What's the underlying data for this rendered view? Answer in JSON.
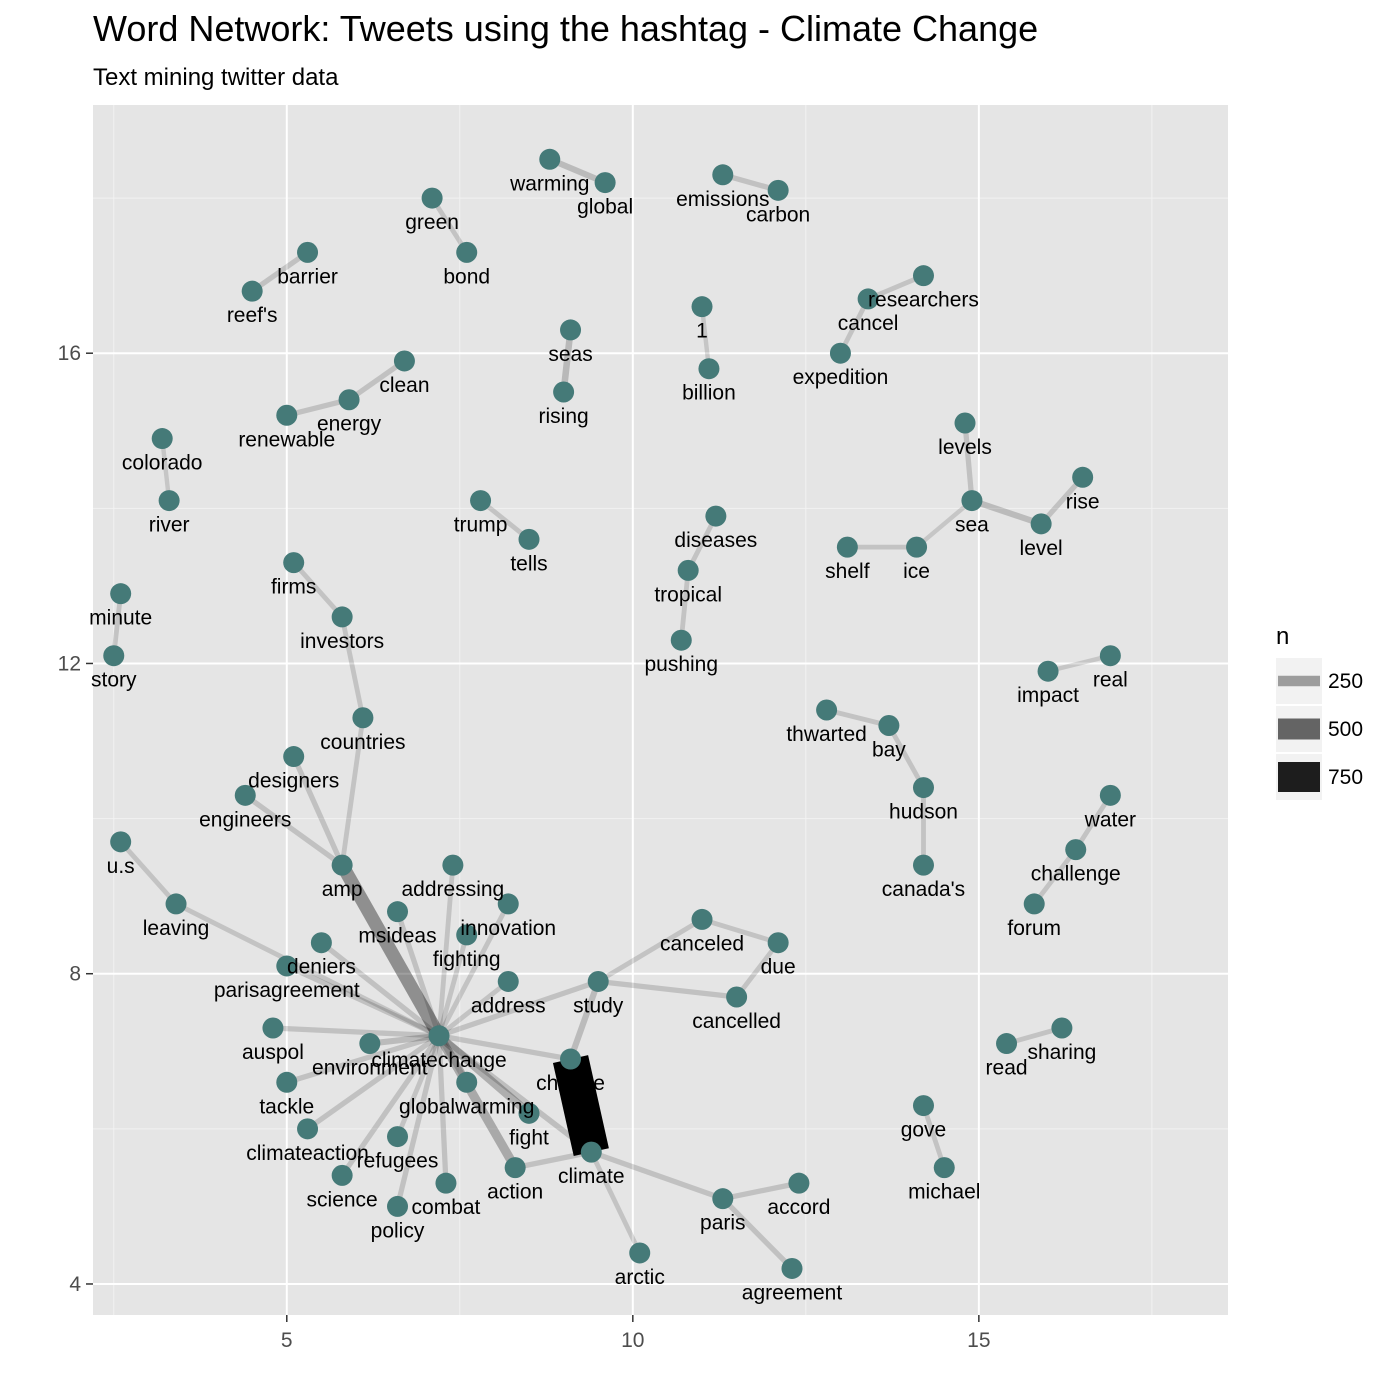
{
  "chart_data": {
    "type": "network",
    "title": "Word Network: Tweets using the hashtag - Climate Change",
    "subtitle": "Text mining twitter data",
    "xlim": [
      2.2,
      18.6
    ],
    "ylim": [
      3.6,
      19.2
    ],
    "x_ticks": [
      5,
      10,
      15
    ],
    "y_ticks": [
      4,
      8,
      12,
      16
    ],
    "grid": true,
    "node_color": "#457a78",
    "edge_color": "#000000",
    "legend": {
      "title": "n",
      "position": "right",
      "entries": [
        {
          "label": "250",
          "value": 250
        },
        {
          "label": "500",
          "value": 500
        },
        {
          "label": "750",
          "value": 750
        }
      ]
    },
    "nodes": [
      {
        "id": "warming",
        "label": "warming",
        "x": 8.8,
        "y": 18.5
      },
      {
        "id": "global",
        "label": "global",
        "x": 9.6,
        "y": 18.2
      },
      {
        "id": "emissions",
        "label": "emissions",
        "x": 11.3,
        "y": 18.3
      },
      {
        "id": "carbon",
        "label": "carbon",
        "x": 12.1,
        "y": 18.1
      },
      {
        "id": "green",
        "label": "green",
        "x": 7.1,
        "y": 18.0
      },
      {
        "id": "bond",
        "label": "bond",
        "x": 7.6,
        "y": 17.3
      },
      {
        "id": "barrier",
        "label": "barrier",
        "x": 5.3,
        "y": 17.3
      },
      {
        "id": "reefs",
        "label": "reef's",
        "x": 4.5,
        "y": 16.8
      },
      {
        "id": "seas",
        "label": "seas",
        "x": 9.1,
        "y": 16.3
      },
      {
        "id": "rising",
        "label": "rising",
        "x": 9.0,
        "y": 15.5
      },
      {
        "id": "one",
        "label": "1",
        "x": 11.0,
        "y": 16.6
      },
      {
        "id": "billion",
        "label": "billion",
        "x": 11.1,
        "y": 15.8
      },
      {
        "id": "researchers",
        "label": "researchers",
        "x": 14.2,
        "y": 17.0
      },
      {
        "id": "cancel",
        "label": "cancel",
        "x": 13.4,
        "y": 16.7
      },
      {
        "id": "expedition",
        "label": "expedition",
        "x": 13.0,
        "y": 16.0
      },
      {
        "id": "clean",
        "label": "clean",
        "x": 6.7,
        "y": 15.9
      },
      {
        "id": "energy",
        "label": "energy",
        "x": 5.9,
        "y": 15.4
      },
      {
        "id": "renewable",
        "label": "renewable",
        "x": 5.0,
        "y": 15.2
      },
      {
        "id": "colorado",
        "label": "colorado",
        "x": 3.2,
        "y": 14.9
      },
      {
        "id": "river",
        "label": "river",
        "x": 3.3,
        "y": 14.1
      },
      {
        "id": "levels",
        "label": "levels",
        "x": 14.8,
        "y": 15.1
      },
      {
        "id": "rise",
        "label": "rise",
        "x": 16.5,
        "y": 14.4
      },
      {
        "id": "sea",
        "label": "sea",
        "x": 14.9,
        "y": 14.1
      },
      {
        "id": "level",
        "label": "level",
        "x": 15.9,
        "y": 13.8
      },
      {
        "id": "shelf",
        "label": "shelf",
        "x": 13.1,
        "y": 13.5
      },
      {
        "id": "ice",
        "label": "ice",
        "x": 14.1,
        "y": 13.5
      },
      {
        "id": "trump",
        "label": "trump",
        "x": 7.8,
        "y": 14.1
      },
      {
        "id": "tells",
        "label": "tells",
        "x": 8.5,
        "y": 13.6
      },
      {
        "id": "diseases",
        "label": "diseases",
        "x": 11.2,
        "y": 13.9
      },
      {
        "id": "tropical",
        "label": "tropical",
        "x": 10.8,
        "y": 13.2
      },
      {
        "id": "pushing",
        "label": "pushing",
        "x": 10.7,
        "y": 12.3
      },
      {
        "id": "minute",
        "label": "minute",
        "x": 2.6,
        "y": 12.9
      },
      {
        "id": "story",
        "label": "story",
        "x": 2.5,
        "y": 12.1
      },
      {
        "id": "firms",
        "label": "firms",
        "x": 5.1,
        "y": 13.3
      },
      {
        "id": "investors",
        "label": "investors",
        "x": 5.8,
        "y": 12.6
      },
      {
        "id": "countries",
        "label": "countries",
        "x": 6.1,
        "y": 11.3
      },
      {
        "id": "impact",
        "label": "impact",
        "x": 16.0,
        "y": 11.9
      },
      {
        "id": "real",
        "label": "real",
        "x": 16.9,
        "y": 12.1
      },
      {
        "id": "thwarted",
        "label": "thwarted",
        "x": 12.8,
        "y": 11.4
      },
      {
        "id": "bay",
        "label": "bay",
        "x": 13.7,
        "y": 11.2
      },
      {
        "id": "hudson",
        "label": "hudson",
        "x": 14.2,
        "y": 10.4
      },
      {
        "id": "canadas",
        "label": "canada's",
        "x": 14.2,
        "y": 9.4
      },
      {
        "id": "designers",
        "label": "designers",
        "x": 5.1,
        "y": 10.8
      },
      {
        "id": "engineers",
        "label": "engineers",
        "x": 4.4,
        "y": 10.3
      },
      {
        "id": "water",
        "label": "water",
        "x": 16.9,
        "y": 10.3
      },
      {
        "id": "challenge",
        "label": "challenge",
        "x": 16.4,
        "y": 9.6
      },
      {
        "id": "forum",
        "label": "forum",
        "x": 15.8,
        "y": 8.9
      },
      {
        "id": "us",
        "label": "u.s",
        "x": 2.6,
        "y": 9.7
      },
      {
        "id": "amp",
        "label": "amp",
        "x": 5.8,
        "y": 9.4
      },
      {
        "id": "addressing",
        "label": "addressing",
        "x": 7.4,
        "y": 9.4
      },
      {
        "id": "leaving",
        "label": "leaving",
        "x": 3.4,
        "y": 8.9
      },
      {
        "id": "innovation",
        "label": "innovation",
        "x": 8.2,
        "y": 8.9
      },
      {
        "id": "msideas",
        "label": "msideas",
        "x": 6.6,
        "y": 8.8
      },
      {
        "id": "canceled",
        "label": "canceled",
        "x": 11.0,
        "y": 8.7
      },
      {
        "id": "due",
        "label": "due",
        "x": 12.1,
        "y": 8.4
      },
      {
        "id": "fighting",
        "label": "fighting",
        "x": 7.6,
        "y": 8.5
      },
      {
        "id": "deniers",
        "label": "deniers",
        "x": 5.5,
        "y": 8.4
      },
      {
        "id": "parisagreement",
        "label": "parisagreement",
        "x": 5.0,
        "y": 8.1
      },
      {
        "id": "address",
        "label": "address",
        "x": 8.2,
        "y": 7.9
      },
      {
        "id": "study",
        "label": "study",
        "x": 9.5,
        "y": 7.9
      },
      {
        "id": "cancelled",
        "label": "cancelled",
        "x": 11.5,
        "y": 7.7
      },
      {
        "id": "auspol",
        "label": "auspol",
        "x": 4.8,
        "y": 7.3
      },
      {
        "id": "climatechange",
        "label": "climatechange",
        "x": 7.2,
        "y": 7.2
      },
      {
        "id": "environment",
        "label": "environment",
        "x": 6.2,
        "y": 7.1
      },
      {
        "id": "read",
        "label": "read",
        "x": 15.4,
        "y": 7.1
      },
      {
        "id": "sharing",
        "label": "sharing",
        "x": 16.2,
        "y": 7.3
      },
      {
        "id": "change",
        "label": "change",
        "x": 9.1,
        "y": 6.9
      },
      {
        "id": "tackle",
        "label": "tackle",
        "x": 5.0,
        "y": 6.6
      },
      {
        "id": "globalwarming",
        "label": "globalwarming",
        "x": 7.6,
        "y": 6.6
      },
      {
        "id": "gove",
        "label": "gove",
        "x": 14.2,
        "y": 6.3
      },
      {
        "id": "fight",
        "label": "fight",
        "x": 8.5,
        "y": 6.2
      },
      {
        "id": "climateaction",
        "label": "climateaction",
        "x": 5.3,
        "y": 6.0
      },
      {
        "id": "refugees",
        "label": "refugees",
        "x": 6.6,
        "y": 5.9
      },
      {
        "id": "climate",
        "label": "climate",
        "x": 9.4,
        "y": 5.7
      },
      {
        "id": "michael",
        "label": "michael",
        "x": 14.5,
        "y": 5.5
      },
      {
        "id": "action",
        "label": "action",
        "x": 8.3,
        "y": 5.5
      },
      {
        "id": "science",
        "label": "science",
        "x": 5.8,
        "y": 5.4
      },
      {
        "id": "accord",
        "label": "accord",
        "x": 12.4,
        "y": 5.3
      },
      {
        "id": "combat",
        "label": "combat",
        "x": 7.3,
        "y": 5.3
      },
      {
        "id": "paris",
        "label": "paris",
        "x": 11.3,
        "y": 5.1
      },
      {
        "id": "policy",
        "label": "policy",
        "x": 6.6,
        "y": 5.0
      },
      {
        "id": "arctic",
        "label": "arctic",
        "x": 10.1,
        "y": 4.4
      },
      {
        "id": "agreement",
        "label": "agreement",
        "x": 12.3,
        "y": 4.2
      }
    ],
    "edges": [
      {
        "from": "warming",
        "to": "global",
        "n": 150
      },
      {
        "from": "emissions",
        "to": "carbon",
        "n": 130
      },
      {
        "from": "green",
        "to": "bond",
        "n": 120
      },
      {
        "from": "barrier",
        "to": "reefs",
        "n": 130
      },
      {
        "from": "seas",
        "to": "rising",
        "n": 160
      },
      {
        "from": "one",
        "to": "billion",
        "n": 110
      },
      {
        "from": "researchers",
        "to": "cancel",
        "n": 120
      },
      {
        "from": "cancel",
        "to": "expedition",
        "n": 120
      },
      {
        "from": "clean",
        "to": "energy",
        "n": 130
      },
      {
        "from": "energy",
        "to": "renewable",
        "n": 130
      },
      {
        "from": "colorado",
        "to": "river",
        "n": 110
      },
      {
        "from": "levels",
        "to": "sea",
        "n": 130
      },
      {
        "from": "sea",
        "to": "level",
        "n": 150
      },
      {
        "from": "level",
        "to": "rise",
        "n": 130
      },
      {
        "from": "sea",
        "to": "ice",
        "n": 110
      },
      {
        "from": "shelf",
        "to": "ice",
        "n": 120
      },
      {
        "from": "trump",
        "to": "tells",
        "n": 120
      },
      {
        "from": "diseases",
        "to": "tropical",
        "n": 120
      },
      {
        "from": "tropical",
        "to": "pushing",
        "n": 120
      },
      {
        "from": "minute",
        "to": "story",
        "n": 120
      },
      {
        "from": "firms",
        "to": "investors",
        "n": 120
      },
      {
        "from": "investors",
        "to": "countries",
        "n": 120
      },
      {
        "from": "countries",
        "to": "amp",
        "n": 120
      },
      {
        "from": "impact",
        "to": "real",
        "n": 110
      },
      {
        "from": "thwarted",
        "to": "bay",
        "n": 120
      },
      {
        "from": "bay",
        "to": "hudson",
        "n": 120
      },
      {
        "from": "hudson",
        "to": "canadas",
        "n": 120
      },
      {
        "from": "designers",
        "to": "amp",
        "n": 130
      },
      {
        "from": "engineers",
        "to": "amp",
        "n": 130
      },
      {
        "from": "water",
        "to": "challenge",
        "n": 120
      },
      {
        "from": "challenge",
        "to": "forum",
        "n": 120
      },
      {
        "from": "us",
        "to": "leaving",
        "n": 120
      },
      {
        "from": "leaving",
        "to": "climatechange",
        "n": 120
      },
      {
        "from": "amp",
        "to": "climatechange",
        "n": 320
      },
      {
        "from": "addressing",
        "to": "climatechange",
        "n": 120
      },
      {
        "from": "innovation",
        "to": "climatechange",
        "n": 120
      },
      {
        "from": "msideas",
        "to": "climatechange",
        "n": 130
      },
      {
        "from": "fighting",
        "to": "climatechange",
        "n": 120
      },
      {
        "from": "deniers",
        "to": "climatechange",
        "n": 130
      },
      {
        "from": "parisagreement",
        "to": "climatechange",
        "n": 130
      },
      {
        "from": "address",
        "to": "climatechange",
        "n": 120
      },
      {
        "from": "study",
        "to": "climatechange",
        "n": 130
      },
      {
        "from": "study",
        "to": "canceled",
        "n": 120
      },
      {
        "from": "canceled",
        "to": "due",
        "n": 120
      },
      {
        "from": "due",
        "to": "cancelled",
        "n": 120
      },
      {
        "from": "study",
        "to": "cancelled",
        "n": 130
      },
      {
        "from": "study",
        "to": "change",
        "n": 150
      },
      {
        "from": "auspol",
        "to": "climatechange",
        "n": 130
      },
      {
        "from": "environment",
        "to": "climatechange",
        "n": 150
      },
      {
        "from": "read",
        "to": "sharing",
        "n": 120
      },
      {
        "from": "change",
        "to": "climate",
        "n": 850
      },
      {
        "from": "change",
        "to": "climatechange",
        "n": 130
      },
      {
        "from": "tackle",
        "to": "climatechange",
        "n": 130
      },
      {
        "from": "globalwarming",
        "to": "climatechange",
        "n": 140
      },
      {
        "from": "gove",
        "to": "michael",
        "n": 120
      },
      {
        "from": "fight",
        "to": "climatechange",
        "n": 200
      },
      {
        "from": "climate",
        "to": "climatechange",
        "n": 140
      },
      {
        "from": "climateaction",
        "to": "climatechange",
        "n": 130
      },
      {
        "from": "refugees",
        "to": "climatechange",
        "n": 120
      },
      {
        "from": "climate",
        "to": "action",
        "n": 130
      },
      {
        "from": "climate",
        "to": "paris",
        "n": 130
      },
      {
        "from": "climate",
        "to": "arctic",
        "n": 120
      },
      {
        "from": "action",
        "to": "climatechange",
        "n": 220
      },
      {
        "from": "science",
        "to": "climatechange",
        "n": 130
      },
      {
        "from": "paris",
        "to": "accord",
        "n": 130
      },
      {
        "from": "paris",
        "to": "agreement",
        "n": 130
      },
      {
        "from": "combat",
        "to": "climatechange",
        "n": 130
      },
      {
        "from": "policy",
        "to": "climatechange",
        "n": 130
      }
    ]
  }
}
